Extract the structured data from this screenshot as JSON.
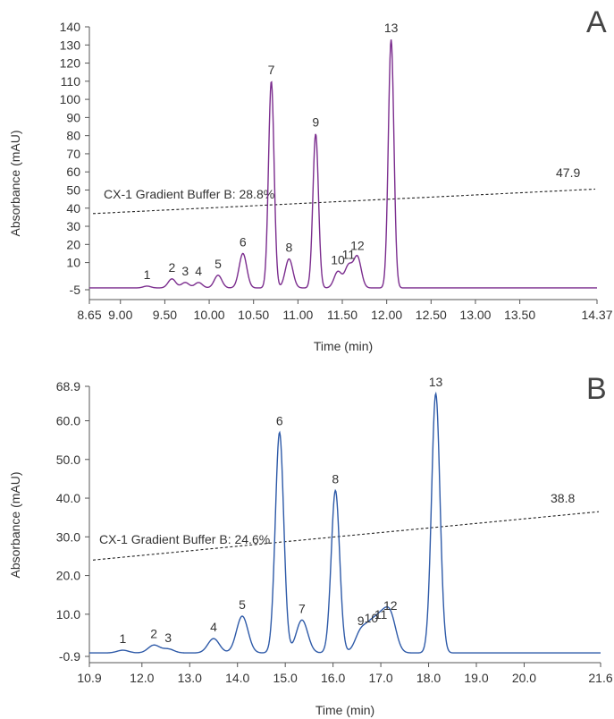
{
  "chart_data": [
    {
      "panel": "A",
      "type": "line",
      "xlabel": "Time (min)",
      "ylabel": "Absorbance (mAU)",
      "xlim": [
        8.65,
        14.37
      ],
      "ylim": [
        -5,
        140
      ],
      "x_ticks": [
        "8.65",
        "9.00",
        "9.50",
        "10.00",
        "10.50",
        "11.00",
        "11.50",
        "12.00",
        "12.50",
        "13.00",
        "13.50",
        "14.37"
      ],
      "y_ticks": [
        "-5",
        "10",
        "20",
        "30",
        "40",
        "50",
        "60",
        "70",
        "80",
        "90",
        "100",
        "110",
        "120",
        "130",
        "140"
      ],
      "color": "#7b2d8e",
      "baseline": -4,
      "peaks": [
        {
          "label": "1",
          "x": 9.3,
          "y": -3
        },
        {
          "label": "2",
          "x": 9.58,
          "y": 1
        },
        {
          "label": "3",
          "x": 9.73,
          "y": -1
        },
        {
          "label": "4",
          "x": 9.88,
          "y": -1
        },
        {
          "label": "5",
          "x": 10.1,
          "y": 3
        },
        {
          "label": "6",
          "x": 10.38,
          "y": 15
        },
        {
          "label": "7",
          "x": 10.7,
          "y": 110
        },
        {
          "label": "8",
          "x": 10.9,
          "y": 12
        },
        {
          "label": "9",
          "x": 11.2,
          "y": 81
        },
        {
          "label": "10",
          "x": 11.45,
          "y": 5
        },
        {
          "label": "11",
          "x": 11.57,
          "y": 8
        },
        {
          "label": "12",
          "x": 11.67,
          "y": 13
        },
        {
          "label": "13",
          "x": 12.05,
          "y": 133
        }
      ],
      "gradient": {
        "label": "CX-1 Gradient Buffer B: 28.8%",
        "end_label": "47.9",
        "y_start": 37,
        "y_end": 50.5
      }
    },
    {
      "panel": "B",
      "type": "line",
      "xlabel": "Time (min)",
      "ylabel": "Absorbance (mAU)",
      "xlim": [
        10.9,
        21.6
      ],
      "ylim": [
        -0.9,
        68.9
      ],
      "x_ticks": [
        "10.9",
        "12.0",
        "13.0",
        "14.0",
        "15.0",
        "16.0",
        "17.0",
        "18.0",
        "19.0",
        "20.0",
        "21.6"
      ],
      "y_ticks": [
        "-0.9",
        "10.0",
        "20.0",
        "30.0",
        "40.0",
        "50.0",
        "60.0",
        "68.9"
      ],
      "color": "#2e5aa8",
      "baseline": 0,
      "peaks": [
        {
          "label": "1",
          "x": 11.6,
          "y": 0.7
        },
        {
          "label": "2",
          "x": 12.25,
          "y": 2.0
        },
        {
          "label": "3",
          "x": 12.55,
          "y": 1.0
        },
        {
          "label": "4",
          "x": 13.5,
          "y": 3.7
        },
        {
          "label": "5",
          "x": 14.1,
          "y": 9.5
        },
        {
          "label": "6",
          "x": 14.88,
          "y": 57
        },
        {
          "label": "7",
          "x": 15.35,
          "y": 8.5
        },
        {
          "label": "8",
          "x": 16.05,
          "y": 42
        },
        {
          "label": "9",
          "x": 16.58,
          "y": 5.3
        },
        {
          "label": "10",
          "x": 16.8,
          "y": 6.0
        },
        {
          "label": "11",
          "x": 17.0,
          "y": 7.0
        },
        {
          "label": "12",
          "x": 17.2,
          "y": 9.3
        },
        {
          "label": "13",
          "x": 18.15,
          "y": 67
        }
      ],
      "gradient": {
        "label": "CX-1 Gradient Buffer B: 24.6%",
        "end_label": "38.8",
        "y_start": 24,
        "y_end": 36.5
      }
    }
  ]
}
